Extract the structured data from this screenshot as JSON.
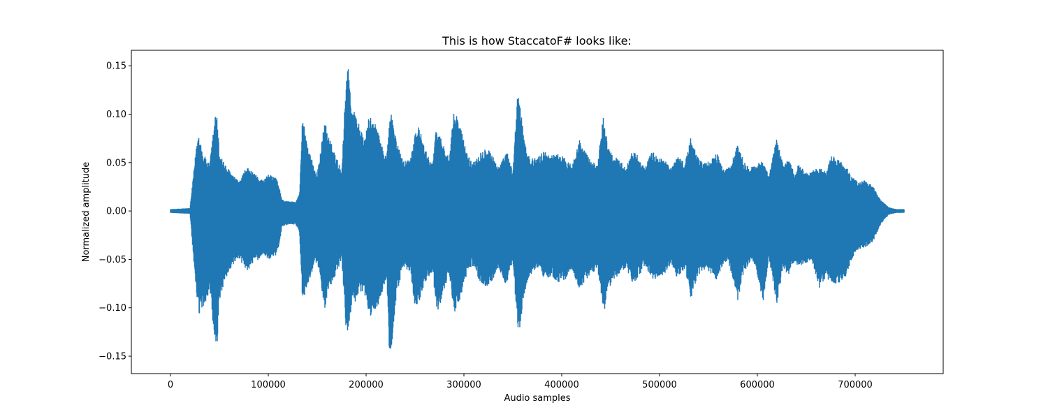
{
  "chart_data": {
    "type": "line",
    "title": "This is how StaccatoF# looks like:",
    "xlabel": "Audio samples",
    "ylabel": "Normalized amplitude",
    "xlim": [
      -40000,
      790000
    ],
    "ylim": [
      -0.168,
      0.166
    ],
    "x_ticks": [
      0,
      100000,
      200000,
      300000,
      400000,
      500000,
      600000,
      700000
    ],
    "x_tick_labels": [
      "0",
      "100000",
      "200000",
      "300000",
      "400000",
      "500000",
      "600000",
      "700000"
    ],
    "y_ticks": [
      -0.15,
      -0.1,
      -0.05,
      0.0,
      0.05,
      0.1,
      0.15
    ],
    "y_tick_labels": [
      "−0.15",
      "−0.10",
      "−0.05",
      "0.00",
      "0.05",
      "0.10",
      "0.15"
    ],
    "grid": false,
    "series_color": "#1f77b4",
    "series": [
      {
        "x": [
          0,
          20000,
          27000,
          29000,
          33000,
          40000,
          46000,
          47000,
          50000,
          56000,
          62000,
          70000,
          78000,
          86000,
          95000,
          100000,
          108000,
          112000,
          114000,
          121000,
          128000,
          132000,
          135000,
          142000,
          150000,
          158000,
          160000,
          168000,
          175000,
          180000,
          182000,
          185000,
          192000,
          198000,
          203000,
          210000,
          216000,
          221000,
          224000,
          226000,
          231000,
          238000,
          245000,
          250000,
          254000,
          260000,
          268000,
          272000,
          278000,
          285000,
          290000,
          296000,
          302000,
          308000,
          316000,
          324000,
          330000,
          336000,
          344000,
          350000,
          355000,
          357000,
          362000,
          368000,
          375000,
          382000,
          390000,
          396000,
          403000,
          410000,
          418000,
          424000,
          431000,
          437000,
          442000,
          444000,
          447000,
          452000,
          460000,
          466000,
          472000,
          478000,
          485000,
          492000,
          500000,
          506000,
          512000,
          518000,
          526000,
          532000,
          538000,
          545000,
          552000,
          559000,
          566000,
          572000,
          580000,
          586000,
          592000,
          598000,
          606000,
          612000,
          620000,
          626000,
          632000,
          638000,
          642000,
          650000,
          656000,
          664000,
          670000,
          676000,
          684000,
          690000,
          696000,
          703000,
          710000,
          718000,
          726000,
          734000,
          742000,
          750000
        ],
        "upper": [
          0.002,
          0.003,
          0.072,
          0.082,
          0.06,
          0.048,
          0.102,
          0.104,
          0.062,
          0.048,
          0.04,
          0.03,
          0.046,
          0.038,
          0.032,
          0.038,
          0.035,
          0.022,
          0.012,
          0.01,
          0.01,
          0.018,
          0.1,
          0.06,
          0.038,
          0.096,
          0.082,
          0.06,
          0.042,
          0.148,
          0.15,
          0.11,
          0.094,
          0.072,
          0.098,
          0.09,
          0.068,
          0.056,
          0.098,
          0.102,
          0.072,
          0.052,
          0.054,
          0.082,
          0.088,
          0.064,
          0.05,
          0.088,
          0.072,
          0.054,
          0.106,
          0.09,
          0.064,
          0.05,
          0.06,
          0.068,
          0.056,
          0.046,
          0.062,
          0.04,
          0.128,
          0.112,
          0.072,
          0.054,
          0.056,
          0.062,
          0.058,
          0.06,
          0.055,
          0.048,
          0.074,
          0.062,
          0.05,
          0.05,
          0.098,
          0.094,
          0.068,
          0.058,
          0.052,
          0.046,
          0.062,
          0.058,
          0.044,
          0.062,
          0.056,
          0.052,
          0.044,
          0.058,
          0.05,
          0.076,
          0.058,
          0.05,
          0.052,
          0.06,
          0.042,
          0.046,
          0.07,
          0.052,
          0.044,
          0.048,
          0.052,
          0.038,
          0.076,
          0.05,
          0.054,
          0.04,
          0.048,
          0.04,
          0.042,
          0.046,
          0.04,
          0.058,
          0.052,
          0.048,
          0.036,
          0.03,
          0.032,
          0.026,
          0.012,
          0.004,
          0.002,
          0.002
        ],
        "lower": [
          -0.002,
          -0.003,
          -0.094,
          -0.108,
          -0.104,
          -0.082,
          -0.15,
          -0.154,
          -0.095,
          -0.07,
          -0.06,
          -0.05,
          -0.062,
          -0.054,
          -0.045,
          -0.05,
          -0.046,
          -0.032,
          -0.016,
          -0.014,
          -0.014,
          -0.024,
          -0.094,
          -0.07,
          -0.052,
          -0.102,
          -0.088,
          -0.07,
          -0.05,
          -0.13,
          -0.126,
          -0.098,
          -0.09,
          -0.084,
          -0.11,
          -0.104,
          -0.086,
          -0.07,
          -0.154,
          -0.15,
          -0.086,
          -0.06,
          -0.062,
          -0.098,
          -0.096,
          -0.074,
          -0.062,
          -0.106,
          -0.09,
          -0.064,
          -0.106,
          -0.092,
          -0.07,
          -0.056,
          -0.072,
          -0.082,
          -0.07,
          -0.06,
          -0.08,
          -0.05,
          -0.124,
          -0.124,
          -0.084,
          -0.066,
          -0.06,
          -0.07,
          -0.068,
          -0.074,
          -0.072,
          -0.06,
          -0.082,
          -0.072,
          -0.064,
          -0.062,
          -0.1,
          -0.102,
          -0.082,
          -0.074,
          -0.064,
          -0.058,
          -0.076,
          -0.07,
          -0.056,
          -0.07,
          -0.07,
          -0.066,
          -0.054,
          -0.07,
          -0.06,
          -0.092,
          -0.07,
          -0.062,
          -0.064,
          -0.072,
          -0.052,
          -0.058,
          -0.094,
          -0.064,
          -0.054,
          -0.056,
          -0.096,
          -0.05,
          -0.098,
          -0.06,
          -0.066,
          -0.052,
          -0.058,
          -0.054,
          -0.052,
          -0.082,
          -0.068,
          -0.076,
          -0.074,
          -0.07,
          -0.052,
          -0.04,
          -0.038,
          -0.032,
          -0.014,
          -0.004,
          -0.002,
          -0.002
        ]
      }
    ]
  }
}
